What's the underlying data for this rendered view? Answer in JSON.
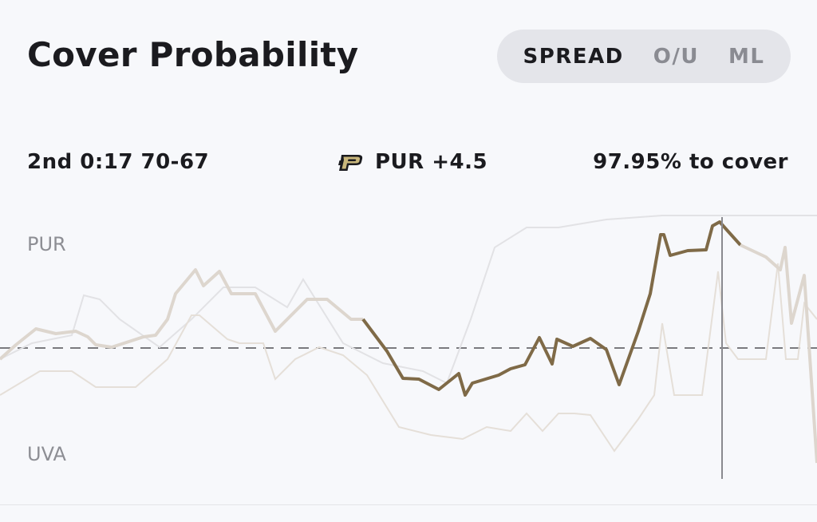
{
  "header": {
    "title": "Cover Probability"
  },
  "segments": [
    {
      "label": "SPREAD",
      "active": true
    },
    {
      "label": "O/U",
      "active": false
    },
    {
      "label": "ML",
      "active": false
    }
  ],
  "status": {
    "game_clock": "2nd 0:17 70-67",
    "team_line": "PUR +4.5",
    "cover_pct": "97.95% to cover"
  },
  "team_logo": {
    "icon": "purdue-p-logo",
    "color": "#c9b77c"
  },
  "axis": {
    "top_label": "PUR",
    "bottom_label": "UVA"
  },
  "colors": {
    "main_line": "#7f6a47",
    "faded_line": "#ddd6ce",
    "ghost_line": "#e2e2e5",
    "baseline": "#7a7a7e"
  }
}
